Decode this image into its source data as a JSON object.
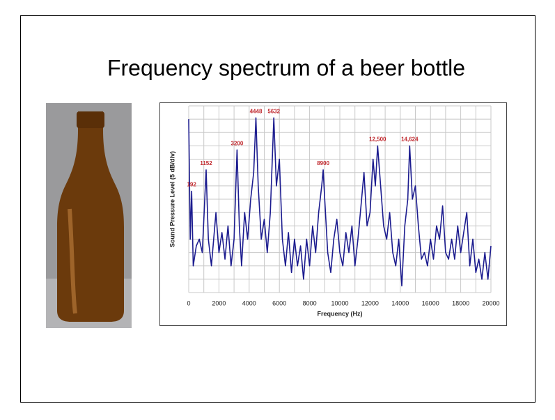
{
  "title": "Frequency spectrum of a beer bottle",
  "chart_data": {
    "type": "line",
    "x_label": "Frequency (Hz)",
    "y_label": "Sound Pressure Level (5 dB/div)",
    "x": [
      0,
      100,
      192,
      300,
      500,
      700,
      900,
      1152,
      1300,
      1500,
      1800,
      2000,
      2200,
      2400,
      2600,
      2800,
      3000,
      3200,
      3350,
      3500,
      3700,
      3900,
      4100,
      4300,
      4448,
      4600,
      4800,
      5000,
      5200,
      5400,
      5632,
      5800,
      6000,
      6200,
      6400,
      6600,
      6800,
      7000,
      7200,
      7400,
      7600,
      7800,
      8000,
      8200,
      8400,
      8600,
      8800,
      8900,
      9000,
      9200,
      9400,
      9600,
      9800,
      10000,
      10200,
      10400,
      10600,
      10800,
      11000,
      11200,
      11400,
      11600,
      11800,
      12000,
      12200,
      12350,
      12500,
      12700,
      12900,
      13100,
      13300,
      13500,
      13700,
      13900,
      14100,
      14300,
      14500,
      14624,
      14800,
      15000,
      15200,
      15400,
      15600,
      15800,
      16000,
      16200,
      16400,
      16600,
      16800,
      17000,
      17200,
      17400,
      17600,
      17800,
      18000,
      18200,
      18400,
      18600,
      18800,
      19000,
      19200,
      19400,
      19600,
      19800,
      20000
    ],
    "series": [
      {
        "color": "#1c1c8f",
        "values": [
          13,
          4,
          7.6,
          2,
          3.5,
          4,
          3,
          9.2,
          4,
          2,
          6,
          3,
          4.5,
          2.5,
          5,
          2,
          4,
          10.7,
          5,
          2,
          6,
          4,
          7,
          9,
          13.1,
          8,
          4,
          5.5,
          3,
          6,
          13.1,
          8,
          10,
          4,
          2,
          4.5,
          1.5,
          4,
          2,
          3.5,
          1,
          4,
          2,
          5,
          3,
          6,
          8,
          9.2,
          7,
          3,
          1.5,
          4,
          5.5,
          3,
          2,
          4.5,
          3,
          5,
          2,
          4,
          6.5,
          9,
          5,
          6,
          10,
          8,
          11,
          8,
          5,
          4,
          6,
          3,
          2,
          4,
          0.5,
          5,
          7,
          11,
          7,
          8,
          5,
          2.5,
          3,
          2,
          4,
          2.5,
          5,
          4,
          6.5,
          3,
          2.5,
          4,
          2.5,
          5,
          3,
          4.5,
          6,
          2,
          4,
          1.5,
          2.5,
          1,
          3,
          1,
          3.5
        ]
      }
    ],
    "xlim": [
      0,
      20000
    ],
    "xticks": [
      0,
      2000,
      4000,
      6000,
      8000,
      10000,
      12000,
      14000,
      16000,
      18000,
      20000
    ],
    "ylim": [
      0,
      14
    ],
    "grid": true,
    "annotations": [
      {
        "text": "192",
        "x": 192,
        "y": 7.6
      },
      {
        "text": "1152",
        "x": 1152,
        "y": 9.2
      },
      {
        "text": "3200",
        "x": 3200,
        "y": 10.7
      },
      {
        "text": "4448",
        "x": 4448,
        "y": 13.1
      },
      {
        "text": "5632",
        "x": 5632,
        "y": 13.1
      },
      {
        "text": "8900",
        "x": 8900,
        "y": 9.2
      },
      {
        "text": "12,500",
        "x": 12500,
        "y": 11
      },
      {
        "text": "14,624",
        "x": 14624,
        "y": 11
      }
    ]
  }
}
